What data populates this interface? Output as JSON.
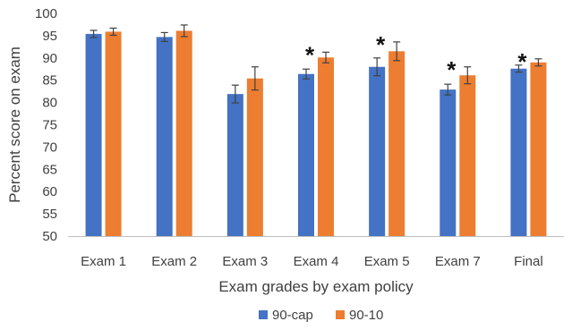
{
  "chart_data": {
    "type": "bar",
    "title": "",
    "xlabel": "Exam grades by exam policy",
    "ylabel": "Percent score on exam",
    "ylim": [
      50,
      100
    ],
    "yticks": [
      50,
      55,
      60,
      65,
      70,
      75,
      80,
      85,
      90,
      95,
      100
    ],
    "grid": false,
    "legend_position": "bottom",
    "categories": [
      "Exam 1",
      "Exam 2",
      "Exam 3",
      "Exam 4",
      "Exam 5",
      "Exam 7",
      "Final"
    ],
    "series": [
      {
        "name": "90-cap",
        "color": "#4472c4",
        "values": [
          95.4,
          94.7,
          81.9,
          86.4,
          88.0,
          82.9,
          87.6
        ],
        "error": [
          0.8,
          1.0,
          2.0,
          1.1,
          2.0,
          1.2,
          0.8
        ]
      },
      {
        "name": "90-10",
        "color": "#ed7d31",
        "values": [
          95.9,
          96.1,
          85.4,
          90.1,
          91.5,
          86.1,
          89.0
        ],
        "error": [
          0.8,
          1.3,
          2.6,
          1.2,
          2.1,
          1.9,
          0.8
        ]
      }
    ],
    "significance_marker": "*",
    "significant": [
      false,
      false,
      false,
      true,
      true,
      true,
      true
    ]
  }
}
